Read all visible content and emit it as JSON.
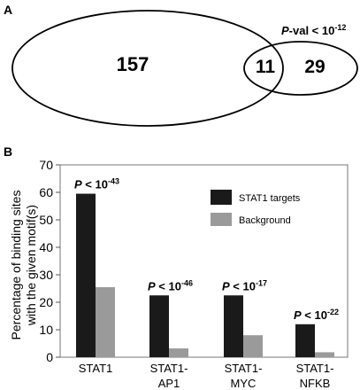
{
  "panel_a": {
    "label": "A",
    "left_only": "157",
    "overlap": "11",
    "right_only": "29",
    "pval_prefix": "P",
    "pval_mid": "-val < 10",
    "pval_exp": "-12"
  },
  "panel_b": {
    "label": "B"
  },
  "chart_data": {
    "type": "bar",
    "title": "",
    "xlabel": "",
    "ylabel": "Percentage of binding sites with the given motif(s)",
    "ylabel_line1": "Percentage of binding sites",
    "ylabel_line2": "with the given motif(s)",
    "ylim": [
      0,
      70
    ],
    "yticks": [
      "0",
      "10",
      "20",
      "30",
      "40",
      "50",
      "60",
      "70"
    ],
    "categories": [
      {
        "line1": "STAT1",
        "line2": ""
      },
      {
        "line1": "STAT1-",
        "line2": "AP1"
      },
      {
        "line1": "STAT1-",
        "line2": "MYC"
      },
      {
        "line1": "STAT1-",
        "line2": "NFKB"
      }
    ],
    "series": [
      {
        "name": "STAT1 targets",
        "color": "#1a1a1a",
        "values": [
          59.5,
          22.5,
          22.5,
          12
        ]
      },
      {
        "name": "Background",
        "color": "#9a9a9a",
        "values": [
          25.5,
          3.2,
          8,
          1.8
        ]
      }
    ],
    "annotations": [
      {
        "p": "P",
        "mid": " < 10",
        "exp": "-43"
      },
      {
        "p": "P",
        "mid": " < 10",
        "exp": "-46"
      },
      {
        "p": "P",
        "mid": " < 10",
        "exp": "-17"
      },
      {
        "p": "P",
        "mid": " < 10",
        "exp": "-22"
      }
    ],
    "legend_position": "top-right"
  }
}
